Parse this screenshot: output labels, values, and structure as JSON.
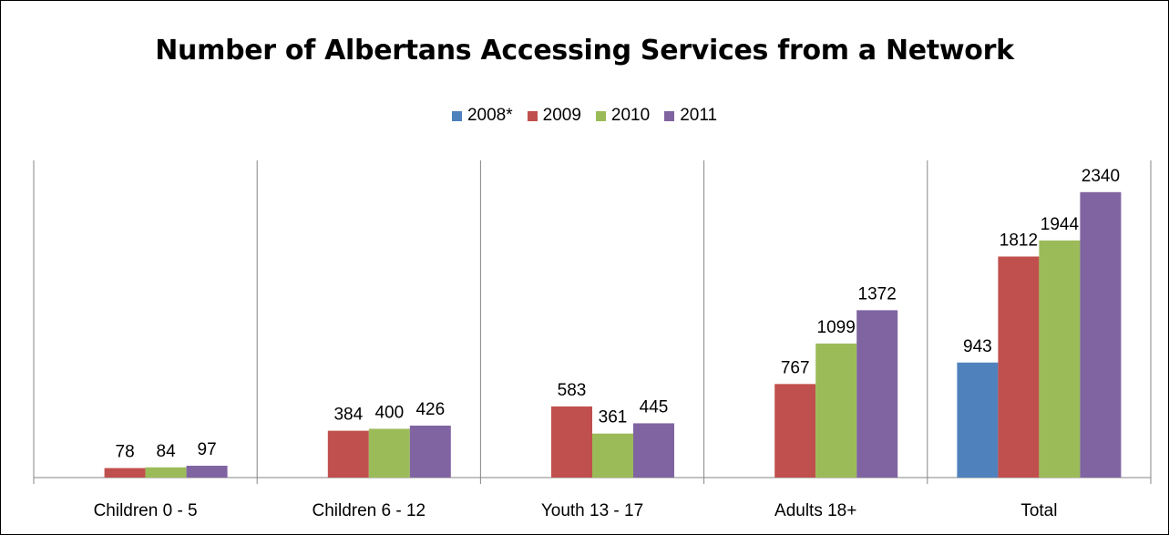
{
  "chart_data": {
    "type": "bar",
    "title": "Number of Albertans Accessing Services from a Network",
    "categories": [
      "Children 0 - 5",
      "Children 6 - 12",
      "Youth 13 - 17",
      "Adults 18+",
      "Total"
    ],
    "series": [
      {
        "name": "2008*",
        "color": "#4f81bd",
        "values": [
          null,
          null,
          null,
          null,
          943
        ]
      },
      {
        "name": "2009",
        "color": "#c0504d",
        "values": [
          78,
          384,
          583,
          767,
          1812
        ]
      },
      {
        "name": "2010",
        "color": "#9bbb59",
        "values": [
          84,
          400,
          361,
          1099,
          1944
        ]
      },
      {
        "name": "2011",
        "color": "#8064a2",
        "values": [
          97,
          426,
          445,
          1372,
          2340
        ]
      }
    ],
    "xlabel": "",
    "ylabel": "",
    "ylim": [
      0,
      2600
    ],
    "grid": "vertical category separators",
    "legend": "top-center",
    "data_labels": true
  }
}
